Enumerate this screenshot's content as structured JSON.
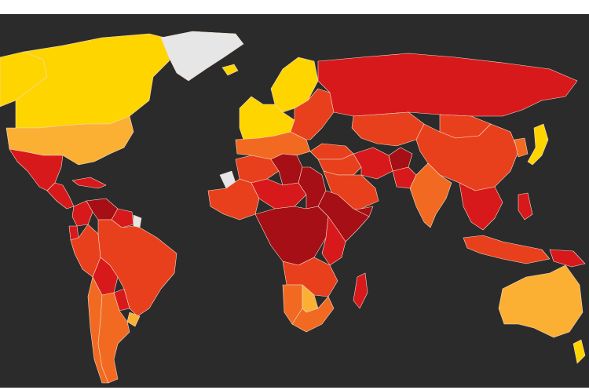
{
  "map": {
    "type": "choropleth",
    "projection": "world",
    "background_color": "#2b2b2b",
    "border_color": "#f4d9c6",
    "legend": null,
    "palette": {
      "lowest": "#ffd500",
      "low": "#fbb034",
      "medium_low": "#f7931e",
      "medium": "#f26a21",
      "medium_high": "#e8401c",
      "high": "#d7191c",
      "highest": "#a50f15",
      "no_data": "#e6e6e6"
    },
    "regions": [
      {
        "id": "alaska",
        "level": "lowest"
      },
      {
        "id": "canada",
        "level": "lowest"
      },
      {
        "id": "greenland",
        "level": "no_data"
      },
      {
        "id": "iceland",
        "level": "lowest"
      },
      {
        "id": "usa",
        "level": "low"
      },
      {
        "id": "mexico",
        "level": "high"
      },
      {
        "id": "central-america",
        "level": "high"
      },
      {
        "id": "caribbean",
        "level": "high"
      },
      {
        "id": "venezuela",
        "level": "highest"
      },
      {
        "id": "guyana-suriname",
        "level": "high"
      },
      {
        "id": "french-guiana",
        "level": "no_data"
      },
      {
        "id": "colombia",
        "level": "high"
      },
      {
        "id": "ecuador",
        "level": "high"
      },
      {
        "id": "peru",
        "level": "medium_high"
      },
      {
        "id": "brazil",
        "level": "medium_high"
      },
      {
        "id": "bolivia",
        "level": "high"
      },
      {
        "id": "paraguay",
        "level": "high"
      },
      {
        "id": "chile",
        "level": "medium"
      },
      {
        "id": "argentina",
        "level": "medium"
      },
      {
        "id": "uruguay",
        "level": "low"
      },
      {
        "id": "scandinavia",
        "level": "lowest"
      },
      {
        "id": "western-europe",
        "level": "lowest"
      },
      {
        "id": "southern-europe",
        "level": "medium"
      },
      {
        "id": "eastern-europe",
        "level": "medium_high"
      },
      {
        "id": "russia",
        "level": "high"
      },
      {
        "id": "central-asia",
        "level": "medium_high"
      },
      {
        "id": "turkey",
        "level": "medium_high"
      },
      {
        "id": "middle-east",
        "level": "medium_high"
      },
      {
        "id": "iran",
        "level": "high"
      },
      {
        "id": "afghanistan",
        "level": "highest"
      },
      {
        "id": "arabia",
        "level": "medium_high"
      },
      {
        "id": "yemen",
        "level": "highest"
      },
      {
        "id": "north-africa",
        "level": "medium_high"
      },
      {
        "id": "libya",
        "level": "highest"
      },
      {
        "id": "western-sahara",
        "level": "no_data"
      },
      {
        "id": "west-africa",
        "level": "medium_high"
      },
      {
        "id": "sahel",
        "level": "high"
      },
      {
        "id": "sudan",
        "level": "highest"
      },
      {
        "id": "horn-of-africa",
        "level": "highest"
      },
      {
        "id": "central-africa",
        "level": "highest"
      },
      {
        "id": "east-africa",
        "level": "high"
      },
      {
        "id": "southern-africa-north",
        "level": "medium_high"
      },
      {
        "id": "namibia",
        "level": "medium"
      },
      {
        "id": "botswana",
        "level": "low"
      },
      {
        "id": "south-africa",
        "level": "medium"
      },
      {
        "id": "madagascar",
        "level": "high"
      },
      {
        "id": "india",
        "level": "medium"
      },
      {
        "id": "pakistan",
        "level": "high"
      },
      {
        "id": "china",
        "level": "medium_high"
      },
      {
        "id": "mongolia",
        "level": "medium_high"
      },
      {
        "id": "korea",
        "level": "medium"
      },
      {
        "id": "japan",
        "level": "lowest"
      },
      {
        "id": "southeast-asia",
        "level": "high"
      },
      {
        "id": "indonesia",
        "level": "medium_high"
      },
      {
        "id": "philippines",
        "level": "high"
      },
      {
        "id": "papua-new-guinea",
        "level": "high"
      },
      {
        "id": "australia",
        "level": "low"
      },
      {
        "id": "new-zealand",
        "level": "lowest"
      }
    ]
  }
}
